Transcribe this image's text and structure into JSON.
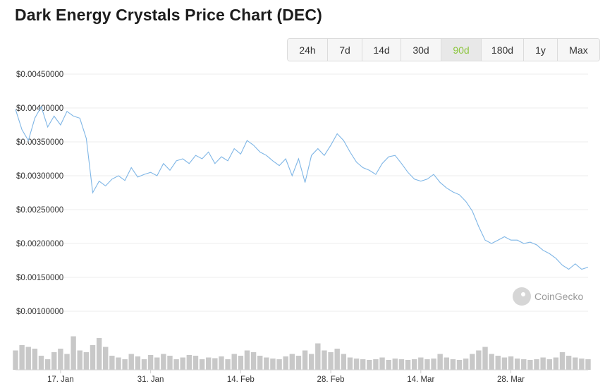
{
  "title": "Dark Energy Crystals Price Chart (DEC)",
  "ranges": [
    "24h",
    "7d",
    "14d",
    "30d",
    "90d",
    "180d",
    "1y",
    "Max"
  ],
  "active_range": "90d",
  "watermark": "CoinGecko",
  "colors": {
    "line": "#7fb6e6",
    "volume": "#c8c8c8",
    "grid": "#ececec",
    "active": "#8dc63f"
  },
  "chart_data": {
    "type": "line",
    "title": "",
    "xlabel": "",
    "ylabel": "",
    "ylim": [
      0.001,
      0.0045
    ],
    "y_ticks": [
      "$0.00450000",
      "$0.00400000",
      "$0.00350000",
      "$0.00300000",
      "$0.00250000",
      "$0.00200000",
      "$0.00150000",
      "$0.00100000"
    ],
    "y_tick_values": [
      0.0045,
      0.004,
      0.0035,
      0.003,
      0.0025,
      0.002,
      0.0015,
      0.001
    ],
    "x_ticks": [
      "17. Jan",
      "31. Jan",
      "14. Feb",
      "28. Feb",
      "14. Mar",
      "28. Mar"
    ],
    "x_tick_dates": [
      "2022-01-17",
      "2022-01-31",
      "2022-02-14",
      "2022-02-28",
      "2022-03-14",
      "2022-03-28"
    ],
    "x_range": [
      "2022-01-10",
      "2022-04-09"
    ],
    "series": [
      {
        "values": [
          [
            "2022-01-10",
            0.00398
          ],
          [
            "2022-01-11",
            0.00368
          ],
          [
            "2022-01-12",
            0.00352
          ],
          [
            "2022-01-13",
            0.00385
          ],
          [
            "2022-01-14",
            0.00402
          ],
          [
            "2022-01-15",
            0.00372
          ],
          [
            "2022-01-16",
            0.00388
          ],
          [
            "2022-01-17",
            0.00375
          ],
          [
            "2022-01-18",
            0.00395
          ],
          [
            "2022-01-19",
            0.00388
          ],
          [
            "2022-01-20",
            0.00385
          ],
          [
            "2022-01-21",
            0.00355
          ],
          [
            "2022-01-22",
            0.00275
          ],
          [
            "2022-01-23",
            0.00292
          ],
          [
            "2022-01-24",
            0.00285
          ],
          [
            "2022-01-25",
            0.00295
          ],
          [
            "2022-01-26",
            0.003
          ],
          [
            "2022-01-27",
            0.00293
          ],
          [
            "2022-01-28",
            0.00312
          ],
          [
            "2022-01-29",
            0.00298
          ],
          [
            "2022-01-30",
            0.00302
          ],
          [
            "2022-01-31",
            0.00305
          ],
          [
            "2022-02-01",
            0.003
          ],
          [
            "2022-02-02",
            0.00318
          ],
          [
            "2022-02-03",
            0.00308
          ],
          [
            "2022-02-04",
            0.00322
          ],
          [
            "2022-02-05",
            0.00325
          ],
          [
            "2022-02-06",
            0.00318
          ],
          [
            "2022-02-07",
            0.0033
          ],
          [
            "2022-02-08",
            0.00325
          ],
          [
            "2022-02-09",
            0.00335
          ],
          [
            "2022-02-10",
            0.00318
          ],
          [
            "2022-02-11",
            0.00328
          ],
          [
            "2022-02-12",
            0.00322
          ],
          [
            "2022-02-13",
            0.0034
          ],
          [
            "2022-02-14",
            0.00332
          ],
          [
            "2022-02-15",
            0.00352
          ],
          [
            "2022-02-16",
            0.00345
          ],
          [
            "2022-02-17",
            0.00335
          ],
          [
            "2022-02-18",
            0.0033
          ],
          [
            "2022-02-19",
            0.00322
          ],
          [
            "2022-02-20",
            0.00315
          ],
          [
            "2022-02-21",
            0.00325
          ],
          [
            "2022-02-22",
            0.003
          ],
          [
            "2022-02-23",
            0.00325
          ],
          [
            "2022-02-24",
            0.0029
          ],
          [
            "2022-02-25",
            0.0033
          ],
          [
            "2022-02-26",
            0.0034
          ],
          [
            "2022-02-27",
            0.0033
          ],
          [
            "2022-02-28",
            0.00345
          ],
          [
            "2022-03-01",
            0.00362
          ],
          [
            "2022-03-02",
            0.00352
          ],
          [
            "2022-03-03",
            0.00335
          ],
          [
            "2022-03-04",
            0.0032
          ],
          [
            "2022-03-05",
            0.00312
          ],
          [
            "2022-03-06",
            0.00308
          ],
          [
            "2022-03-07",
            0.00302
          ],
          [
            "2022-03-08",
            0.00318
          ],
          [
            "2022-03-09",
            0.00328
          ],
          [
            "2022-03-10",
            0.0033
          ],
          [
            "2022-03-11",
            0.00318
          ],
          [
            "2022-03-12",
            0.00305
          ],
          [
            "2022-03-13",
            0.00295
          ],
          [
            "2022-03-14",
            0.00292
          ],
          [
            "2022-03-15",
            0.00295
          ],
          [
            "2022-03-16",
            0.00302
          ],
          [
            "2022-03-17",
            0.0029
          ],
          [
            "2022-03-18",
            0.00282
          ],
          [
            "2022-03-19",
            0.00276
          ],
          [
            "2022-03-20",
            0.00272
          ],
          [
            "2022-03-21",
            0.00262
          ],
          [
            "2022-03-22",
            0.00248
          ],
          [
            "2022-03-23",
            0.00225
          ],
          [
            "2022-03-24",
            0.00205
          ],
          [
            "2022-03-25",
            0.002
          ],
          [
            "2022-03-26",
            0.00205
          ],
          [
            "2022-03-27",
            0.0021
          ],
          [
            "2022-03-28",
            0.00205
          ],
          [
            "2022-03-29",
            0.00205
          ],
          [
            "2022-03-30",
            0.002
          ],
          [
            "2022-03-31",
            0.00202
          ],
          [
            "2022-04-01",
            0.00198
          ],
          [
            "2022-04-02",
            0.0019
          ],
          [
            "2022-04-03",
            0.00185
          ],
          [
            "2022-04-04",
            0.00178
          ],
          [
            "2022-04-05",
            0.00168
          ],
          [
            "2022-04-06",
            0.00162
          ],
          [
            "2022-04-07",
            0.0017
          ],
          [
            "2022-04-08",
            0.00162
          ],
          [
            "2022-04-09",
            0.00165
          ]
        ]
      }
    ],
    "volume": {
      "ylim": [
        0,
        1
      ],
      "values": [
        [
          "2022-01-10",
          0.55
        ],
        [
          "2022-01-11",
          0.7
        ],
        [
          "2022-01-12",
          0.65
        ],
        [
          "2022-01-13",
          0.6
        ],
        [
          "2022-01-14",
          0.4
        ],
        [
          "2022-01-15",
          0.3
        ],
        [
          "2022-01-16",
          0.5
        ],
        [
          "2022-01-17",
          0.6
        ],
        [
          "2022-01-18",
          0.45
        ],
        [
          "2022-01-19",
          0.95
        ],
        [
          "2022-01-20",
          0.55
        ],
        [
          "2022-01-21",
          0.5
        ],
        [
          "2022-01-22",
          0.7
        ],
        [
          "2022-01-23",
          0.9
        ],
        [
          "2022-01-24",
          0.65
        ],
        [
          "2022-01-25",
          0.4
        ],
        [
          "2022-01-26",
          0.35
        ],
        [
          "2022-01-27",
          0.3
        ],
        [
          "2022-01-28",
          0.45
        ],
        [
          "2022-01-29",
          0.38
        ],
        [
          "2022-01-30",
          0.3
        ],
        [
          "2022-01-31",
          0.42
        ],
        [
          "2022-02-01",
          0.35
        ],
        [
          "2022-02-02",
          0.45
        ],
        [
          "2022-02-03",
          0.4
        ],
        [
          "2022-02-04",
          0.3
        ],
        [
          "2022-02-05",
          0.35
        ],
        [
          "2022-02-06",
          0.42
        ],
        [
          "2022-02-07",
          0.4
        ],
        [
          "2022-02-08",
          0.3
        ],
        [
          "2022-02-09",
          0.35
        ],
        [
          "2022-02-10",
          0.33
        ],
        [
          "2022-02-11",
          0.38
        ],
        [
          "2022-02-12",
          0.3
        ],
        [
          "2022-02-13",
          0.45
        ],
        [
          "2022-02-14",
          0.4
        ],
        [
          "2022-02-15",
          0.55
        ],
        [
          "2022-02-16",
          0.5
        ],
        [
          "2022-02-17",
          0.4
        ],
        [
          "2022-02-18",
          0.35
        ],
        [
          "2022-02-19",
          0.32
        ],
        [
          "2022-02-20",
          0.3
        ],
        [
          "2022-02-21",
          0.38
        ],
        [
          "2022-02-22",
          0.45
        ],
        [
          "2022-02-23",
          0.4
        ],
        [
          "2022-02-24",
          0.55
        ],
        [
          "2022-02-25",
          0.45
        ],
        [
          "2022-02-26",
          0.75
        ],
        [
          "2022-02-27",
          0.55
        ],
        [
          "2022-02-28",
          0.5
        ],
        [
          "2022-03-01",
          0.6
        ],
        [
          "2022-03-02",
          0.45
        ],
        [
          "2022-03-03",
          0.35
        ],
        [
          "2022-03-04",
          0.32
        ],
        [
          "2022-03-05",
          0.3
        ],
        [
          "2022-03-06",
          0.28
        ],
        [
          "2022-03-07",
          0.3
        ],
        [
          "2022-03-08",
          0.35
        ],
        [
          "2022-03-09",
          0.28
        ],
        [
          "2022-03-10",
          0.32
        ],
        [
          "2022-03-11",
          0.3
        ],
        [
          "2022-03-12",
          0.28
        ],
        [
          "2022-03-13",
          0.3
        ],
        [
          "2022-03-14",
          0.35
        ],
        [
          "2022-03-15",
          0.3
        ],
        [
          "2022-03-16",
          0.32
        ],
        [
          "2022-03-17",
          0.45
        ],
        [
          "2022-03-18",
          0.35
        ],
        [
          "2022-03-19",
          0.3
        ],
        [
          "2022-03-20",
          0.28
        ],
        [
          "2022-03-21",
          0.32
        ],
        [
          "2022-03-22",
          0.45
        ],
        [
          "2022-03-23",
          0.55
        ],
        [
          "2022-03-24",
          0.65
        ],
        [
          "2022-03-25",
          0.45
        ],
        [
          "2022-03-26",
          0.4
        ],
        [
          "2022-03-27",
          0.35
        ],
        [
          "2022-03-28",
          0.38
        ],
        [
          "2022-03-29",
          0.32
        ],
        [
          "2022-03-30",
          0.3
        ],
        [
          "2022-03-31",
          0.28
        ],
        [
          "2022-04-01",
          0.3
        ],
        [
          "2022-04-02",
          0.35
        ],
        [
          "2022-04-03",
          0.3
        ],
        [
          "2022-04-04",
          0.35
        ],
        [
          "2022-04-05",
          0.5
        ],
        [
          "2022-04-06",
          0.4
        ],
        [
          "2022-04-07",
          0.35
        ],
        [
          "2022-04-08",
          0.32
        ],
        [
          "2022-04-09",
          0.3
        ]
      ]
    },
    "grid": true,
    "legend": "none"
  }
}
